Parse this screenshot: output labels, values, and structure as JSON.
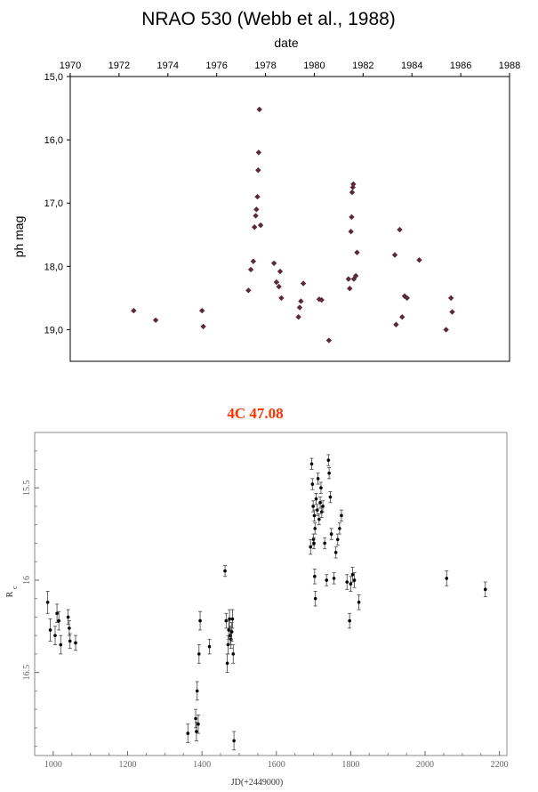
{
  "chart_data": [
    {
      "type": "scatter",
      "title": "NRAO 530 (Webb et al., 1988)",
      "xlabel": "date",
      "ylabel": "ph mag",
      "xlim": [
        1970,
        1988
      ],
      "ylim": [
        15.0,
        19.5
      ],
      "y_inverted": true,
      "x_axis_position": "top",
      "xticks": [
        "1970",
        "1972",
        "1974",
        "1976",
        "1978",
        "1980",
        "1982",
        "1984",
        "1986",
        "1988"
      ],
      "yticks": [
        "15,0",
        "16,0",
        "17,0",
        "18,0",
        "19,0"
      ],
      "marker_color": "#5a2a3a",
      "marker": "diamond",
      "grid": false,
      "points": [
        {
          "x": 1972.6,
          "y": 18.7
        },
        {
          "x": 1973.5,
          "y": 18.85
        },
        {
          "x": 1975.4,
          "y": 18.7
        },
        {
          "x": 1975.45,
          "y": 18.95
        },
        {
          "x": 1977.3,
          "y": 18.38
        },
        {
          "x": 1977.4,
          "y": 18.05
        },
        {
          "x": 1977.5,
          "y": 17.92
        },
        {
          "x": 1977.55,
          "y": 17.38
        },
        {
          "x": 1977.6,
          "y": 17.2
        },
        {
          "x": 1977.63,
          "y": 17.1
        },
        {
          "x": 1977.67,
          "y": 16.9
        },
        {
          "x": 1977.7,
          "y": 16.48
        },
        {
          "x": 1977.72,
          "y": 16.2
        },
        {
          "x": 1977.75,
          "y": 15.52
        },
        {
          "x": 1977.8,
          "y": 17.35
        },
        {
          "x": 1978.35,
          "y": 17.95
        },
        {
          "x": 1978.45,
          "y": 18.25
        },
        {
          "x": 1978.55,
          "y": 18.32
        },
        {
          "x": 1978.6,
          "y": 18.08
        },
        {
          "x": 1978.65,
          "y": 18.5
        },
        {
          "x": 1979.35,
          "y": 18.8
        },
        {
          "x": 1979.4,
          "y": 18.65
        },
        {
          "x": 1979.45,
          "y": 18.55
        },
        {
          "x": 1979.55,
          "y": 18.27
        },
        {
          "x": 1980.2,
          "y": 18.52
        },
        {
          "x": 1980.3,
          "y": 18.53
        },
        {
          "x": 1980.6,
          "y": 19.17
        },
        {
          "x": 1981.4,
          "y": 18.2
        },
        {
          "x": 1981.45,
          "y": 18.35
        },
        {
          "x": 1981.5,
          "y": 17.45
        },
        {
          "x": 1981.53,
          "y": 17.22
        },
        {
          "x": 1981.55,
          "y": 16.83
        },
        {
          "x": 1981.58,
          "y": 16.75
        },
        {
          "x": 1981.6,
          "y": 16.7
        },
        {
          "x": 1981.62,
          "y": 18.2
        },
        {
          "x": 1981.7,
          "y": 18.15
        },
        {
          "x": 1981.75,
          "y": 17.78
        },
        {
          "x": 1983.3,
          "y": 17.82
        },
        {
          "x": 1983.35,
          "y": 18.92
        },
        {
          "x": 1983.5,
          "y": 17.42
        },
        {
          "x": 1983.6,
          "y": 18.8
        },
        {
          "x": 1983.7,
          "y": 18.47
        },
        {
          "x": 1983.8,
          "y": 18.5
        },
        {
          "x": 1984.3,
          "y": 17.9
        },
        {
          "x": 1985.4,
          "y": 19.0
        },
        {
          "x": 1985.6,
          "y": 18.5
        },
        {
          "x": 1985.65,
          "y": 18.72
        }
      ]
    },
    {
      "type": "scatter",
      "title": "4C 47.08",
      "title_color": "#ff3300",
      "xlabel": "JD(+2449000)",
      "ylabel": "R",
      "ylabel_subscript": "c",
      "xlim": [
        950,
        2220
      ],
      "ylim": [
        15.2,
        16.95
      ],
      "y_inverted": true,
      "xticks": [
        "1000",
        "1200",
        "1400",
        "1600",
        "1800",
        "2000",
        "2200"
      ],
      "yticks": [
        "15.5",
        "16",
        "16.5"
      ],
      "error_bars": true,
      "marker_color": "#000000",
      "grid": false,
      "points": [
        {
          "x": 985,
          "y": 16.12,
          "err": 0.06
        },
        {
          "x": 992,
          "y": 16.27,
          "err": 0.06
        },
        {
          "x": 1005,
          "y": 16.3,
          "err": 0.05
        },
        {
          "x": 1010,
          "y": 16.18,
          "err": 0.05
        },
        {
          "x": 1015,
          "y": 16.22,
          "err": 0.05
        },
        {
          "x": 1020,
          "y": 16.35,
          "err": 0.05
        },
        {
          "x": 1040,
          "y": 16.2,
          "err": 0.04
        },
        {
          "x": 1043,
          "y": 16.26,
          "err": 0.04
        },
        {
          "x": 1045,
          "y": 16.33,
          "err": 0.04
        },
        {
          "x": 1060,
          "y": 16.34,
          "err": 0.04
        },
        {
          "x": 1362,
          "y": 16.83,
          "err": 0.05
        },
        {
          "x": 1383,
          "y": 16.75,
          "err": 0.05
        },
        {
          "x": 1385,
          "y": 16.82,
          "err": 0.05
        },
        {
          "x": 1387,
          "y": 16.6,
          "err": 0.05
        },
        {
          "x": 1390,
          "y": 16.78,
          "err": 0.05
        },
        {
          "x": 1392,
          "y": 16.4,
          "err": 0.05
        },
        {
          "x": 1395,
          "y": 16.22,
          "err": 0.05
        },
        {
          "x": 1420,
          "y": 16.36,
          "err": 0.04
        },
        {
          "x": 1462,
          "y": 15.95,
          "err": 0.03
        },
        {
          "x": 1465,
          "y": 16.22,
          "err": 0.04
        },
        {
          "x": 1468,
          "y": 16.45,
          "err": 0.05
        },
        {
          "x": 1470,
          "y": 16.35,
          "err": 0.05
        },
        {
          "x": 1472,
          "y": 16.27,
          "err": 0.05
        },
        {
          "x": 1474,
          "y": 16.21,
          "err": 0.05
        },
        {
          "x": 1476,
          "y": 16.3,
          "err": 0.05
        },
        {
          "x": 1478,
          "y": 16.32,
          "err": 0.05
        },
        {
          "x": 1480,
          "y": 16.28,
          "err": 0.05
        },
        {
          "x": 1482,
          "y": 16.21,
          "err": 0.05
        },
        {
          "x": 1484,
          "y": 16.4,
          "err": 0.05
        },
        {
          "x": 1486,
          "y": 16.87,
          "err": 0.05
        },
        {
          "x": 1692,
          "y": 15.82,
          "err": 0.04
        },
        {
          "x": 1695,
          "y": 15.37,
          "err": 0.03
        },
        {
          "x": 1697,
          "y": 15.48,
          "err": 0.03
        },
        {
          "x": 1699,
          "y": 15.6,
          "err": 0.03
        },
        {
          "x": 1700,
          "y": 15.78,
          "err": 0.03
        },
        {
          "x": 1701,
          "y": 15.8,
          "err": 0.03
        },
        {
          "x": 1702,
          "y": 15.65,
          "err": 0.03
        },
        {
          "x": 1703,
          "y": 15.98,
          "err": 0.04
        },
        {
          "x": 1704,
          "y": 15.72,
          "err": 0.03
        },
        {
          "x": 1705,
          "y": 16.1,
          "err": 0.04
        },
        {
          "x": 1707,
          "y": 15.56,
          "err": 0.03
        },
        {
          "x": 1710,
          "y": 15.62,
          "err": 0.03
        },
        {
          "x": 1712,
          "y": 15.45,
          "err": 0.03
        },
        {
          "x": 1715,
          "y": 15.67,
          "err": 0.03
        },
        {
          "x": 1718,
          "y": 15.58,
          "err": 0.03
        },
        {
          "x": 1720,
          "y": 15.5,
          "err": 0.03
        },
        {
          "x": 1722,
          "y": 15.63,
          "err": 0.03
        },
        {
          "x": 1725,
          "y": 15.6,
          "err": 0.03
        },
        {
          "x": 1730,
          "y": 15.8,
          "err": 0.03
        },
        {
          "x": 1735,
          "y": 16.0,
          "err": 0.03
        },
        {
          "x": 1740,
          "y": 15.35,
          "err": 0.03
        },
        {
          "x": 1742,
          "y": 15.42,
          "err": 0.03
        },
        {
          "x": 1745,
          "y": 15.55,
          "err": 0.03
        },
        {
          "x": 1748,
          "y": 15.75,
          "err": 0.03
        },
        {
          "x": 1755,
          "y": 15.99,
          "err": 0.03
        },
        {
          "x": 1760,
          "y": 15.85,
          "err": 0.03
        },
        {
          "x": 1765,
          "y": 15.78,
          "err": 0.03
        },
        {
          "x": 1770,
          "y": 15.72,
          "err": 0.03
        },
        {
          "x": 1775,
          "y": 15.65,
          "err": 0.03
        },
        {
          "x": 1790,
          "y": 16.01,
          "err": 0.04
        },
        {
          "x": 1797,
          "y": 16.22,
          "err": 0.04
        },
        {
          "x": 1800,
          "y": 16.02,
          "err": 0.04
        },
        {
          "x": 1805,
          "y": 15.97,
          "err": 0.04
        },
        {
          "x": 1810,
          "y": 16.0,
          "err": 0.04
        },
        {
          "x": 1822,
          "y": 16.12,
          "err": 0.04
        },
        {
          "x": 2058,
          "y": 15.99,
          "err": 0.04
        },
        {
          "x": 2162,
          "y": 16.05,
          "err": 0.04
        }
      ]
    }
  ]
}
